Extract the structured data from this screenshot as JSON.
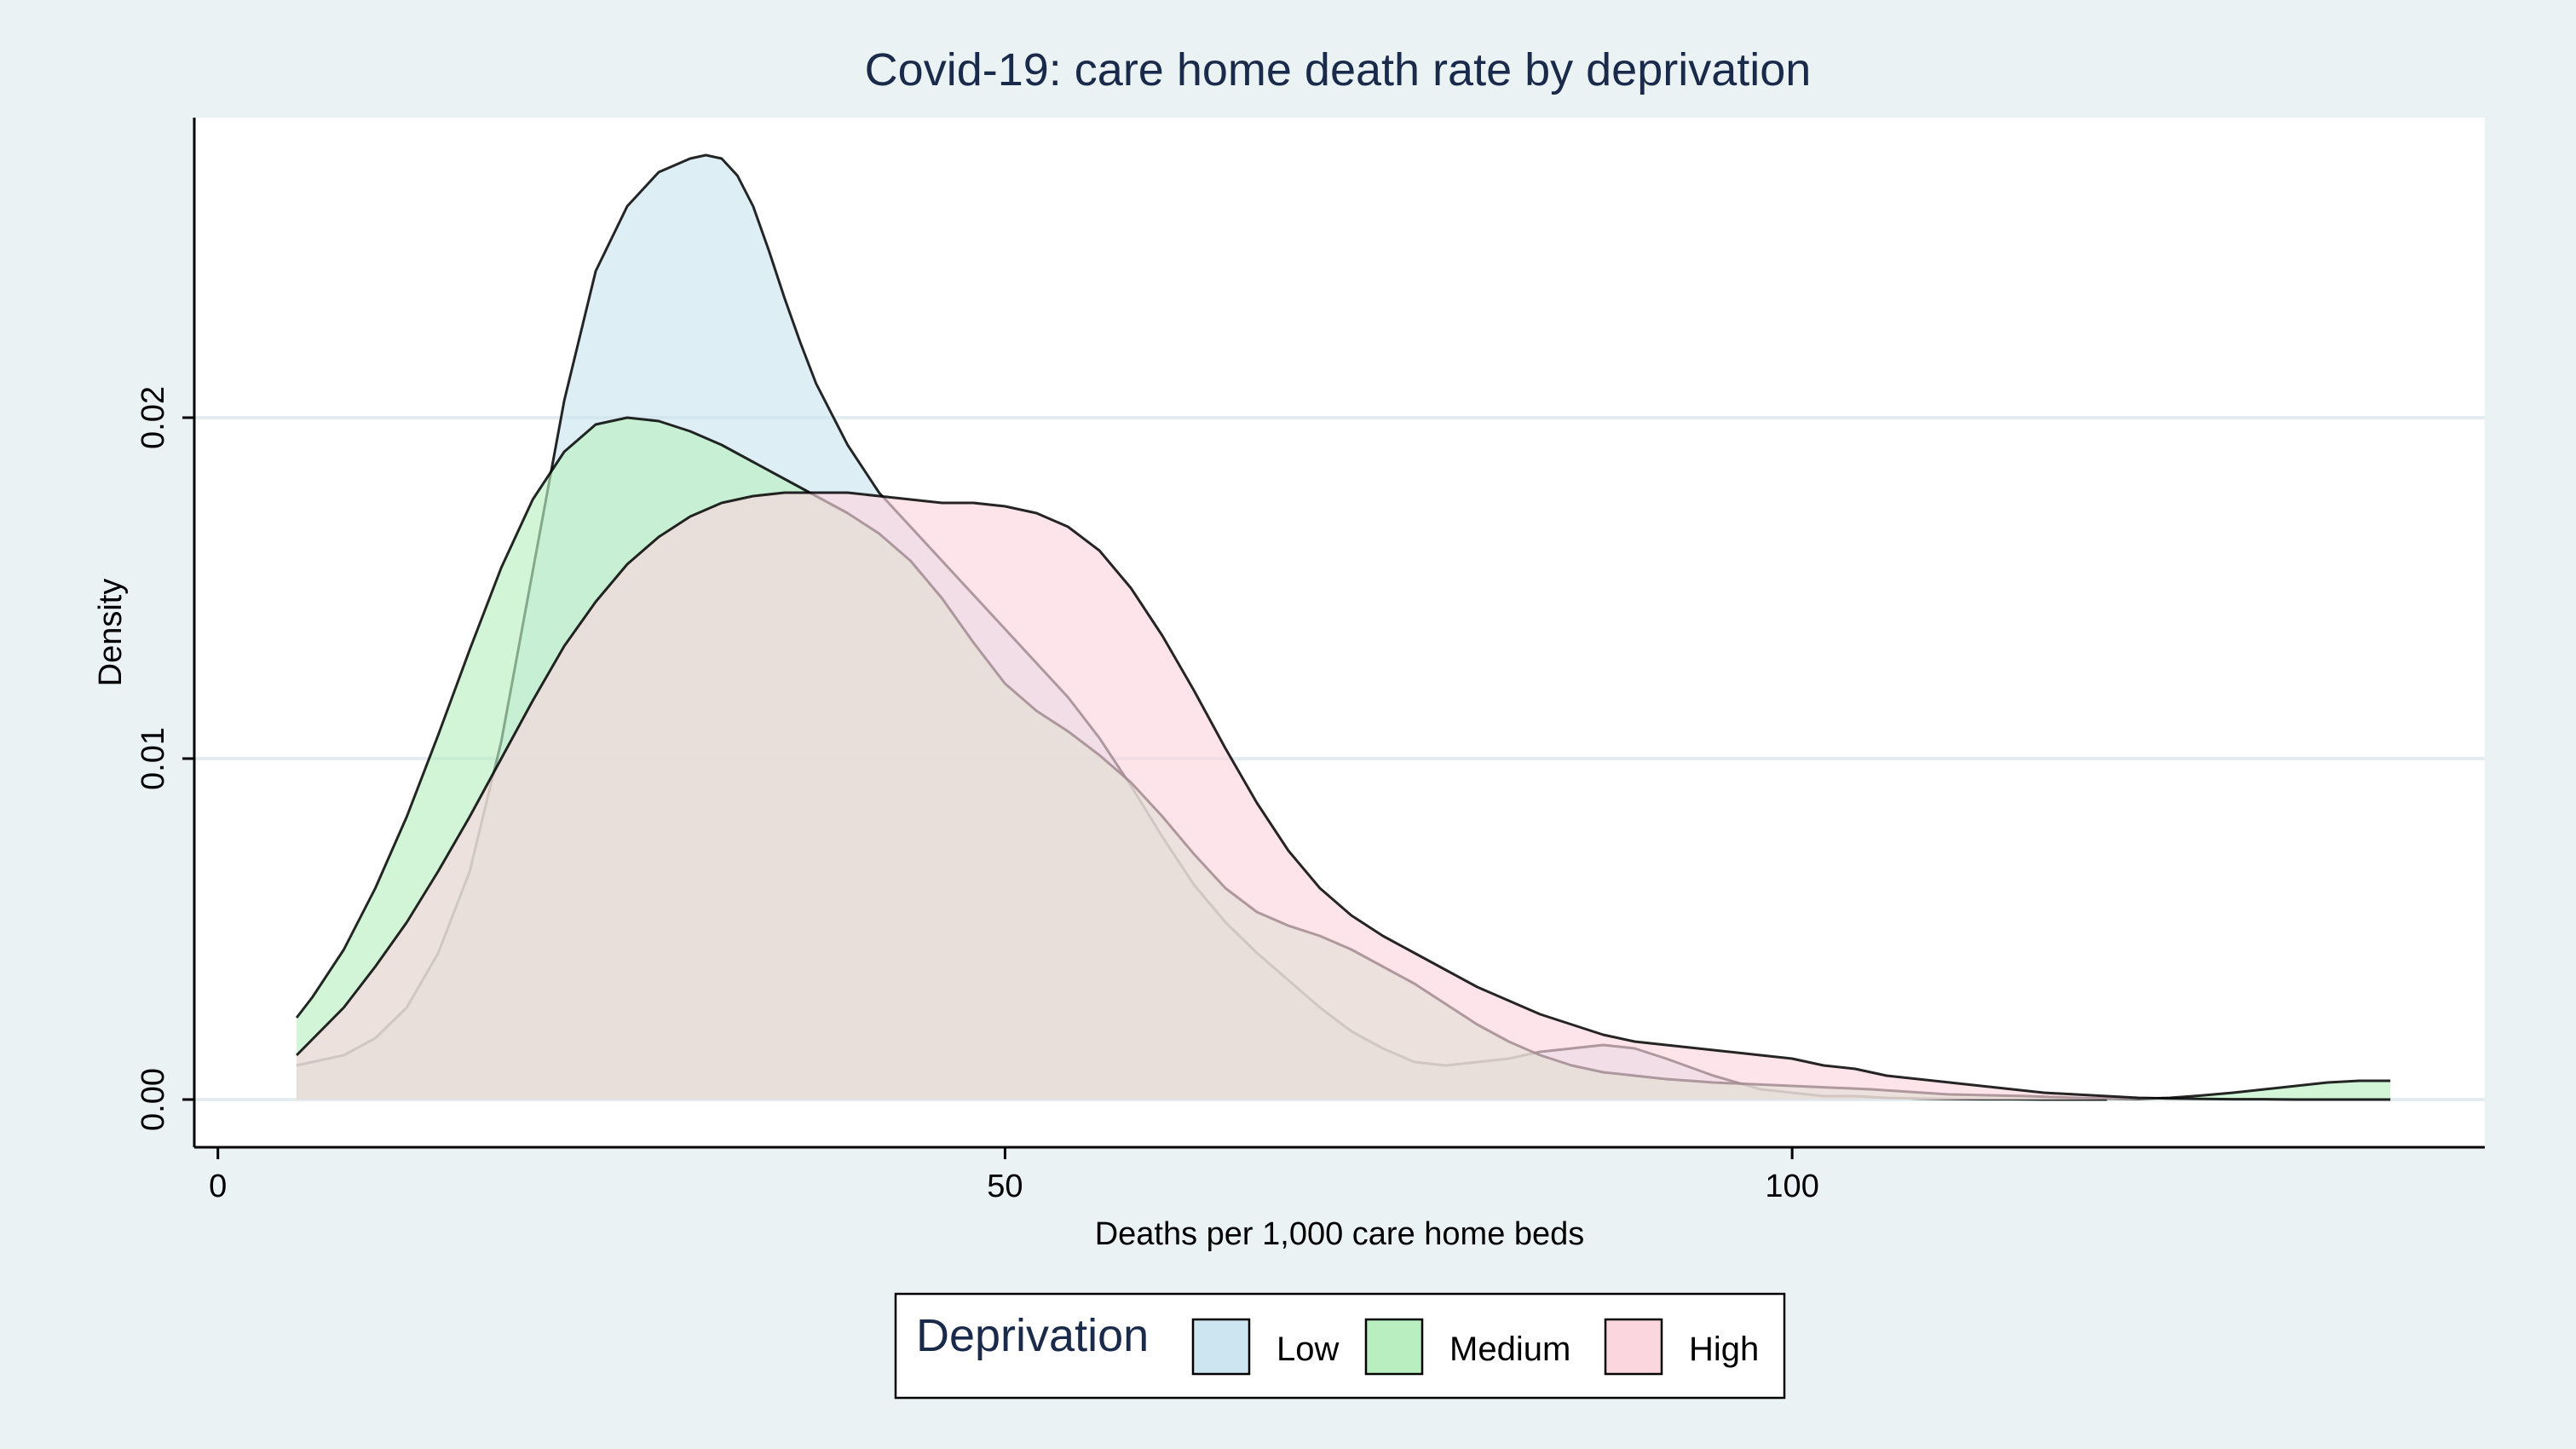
{
  "chart_data": {
    "type": "area",
    "title": "Covid-19: care home death rate by deprivation",
    "xlabel": "Deaths per 1,000 care home beds",
    "ylabel": "Density",
    "xlim": [
      -1.5,
      144
    ],
    "ylim": [
      -0.0014,
      0.0288
    ],
    "x_ticks": [
      0,
      50,
      100
    ],
    "x_tick_labels": [
      "0",
      "50",
      "100"
    ],
    "y_ticks": [
      0,
      0.01,
      0.02
    ],
    "y_tick_labels": [
      "0.00",
      "0.01",
      "0.02"
    ],
    "grid": true,
    "legend_title": "Deprivation",
    "legend_position": "bottom",
    "series": [
      {
        "name": "Low",
        "color": "#cce5f0",
        "x": [
          5,
          8,
          10,
          12,
          14,
          16,
          18,
          20,
          22,
          24,
          26,
          28,
          30,
          31,
          32,
          33,
          34,
          35,
          36,
          37,
          38,
          40,
          42,
          44,
          46,
          48,
          50,
          52,
          54,
          56,
          58,
          60,
          62,
          64,
          66,
          68,
          70,
          72,
          74,
          76,
          78,
          80,
          82,
          84,
          86,
          88,
          90,
          92,
          95,
          98,
          100,
          102,
          104,
          106,
          108,
          110,
          112,
          114,
          116,
          118,
          120
        ],
        "y": [
          0.001,
          0.0013,
          0.0018,
          0.0027,
          0.0043,
          0.0067,
          0.0105,
          0.0155,
          0.0205,
          0.0243,
          0.0262,
          0.0272,
          0.0276,
          0.0277,
          0.0276,
          0.0271,
          0.0262,
          0.0249,
          0.0235,
          0.0222,
          0.021,
          0.0192,
          0.0178,
          0.0168,
          0.0158,
          0.0148,
          0.0138,
          0.0128,
          0.0118,
          0.0106,
          0.0092,
          0.0077,
          0.0063,
          0.0052,
          0.0043,
          0.0035,
          0.0027,
          0.002,
          0.0015,
          0.0011,
          0.001,
          0.0011,
          0.0012,
          0.0014,
          0.0015,
          0.0016,
          0.0015,
          0.0012,
          0.0007,
          0.0003,
          0.0002,
          0.0001,
          0.0001,
          5e-05,
          3e-05,
          2e-05,
          1e-05,
          1e-05,
          0.0,
          0.0,
          0.0
        ]
      },
      {
        "name": "Medium",
        "color": "#b9efc0",
        "x": [
          5,
          6,
          8,
          10,
          12,
          14,
          16,
          18,
          20,
          22,
          24,
          26,
          28,
          30,
          32,
          34,
          36,
          38,
          40,
          42,
          44,
          46,
          48,
          50,
          52,
          54,
          56,
          58,
          60,
          62,
          64,
          66,
          68,
          70,
          72,
          74,
          76,
          78,
          80,
          82,
          84,
          86,
          88,
          90,
          92,
          95,
          100,
          105,
          110,
          115,
          118,
          120,
          122,
          124,
          126,
          128,
          130,
          132,
          134,
          136,
          138
        ],
        "y": [
          0.0024,
          0.003,
          0.0044,
          0.0062,
          0.0083,
          0.0107,
          0.0132,
          0.0156,
          0.0176,
          0.019,
          0.0198,
          0.02,
          0.0199,
          0.0196,
          0.0192,
          0.0187,
          0.0182,
          0.0177,
          0.0172,
          0.0166,
          0.0158,
          0.0147,
          0.0134,
          0.0122,
          0.0114,
          0.0108,
          0.0101,
          0.0093,
          0.0083,
          0.0072,
          0.0062,
          0.0055,
          0.0051,
          0.0048,
          0.0044,
          0.0039,
          0.0034,
          0.0028,
          0.0022,
          0.0017,
          0.0013,
          0.001,
          0.0008,
          0.0007,
          0.0006,
          0.0005,
          0.0004,
          0.0003,
          0.00015,
          0.0001,
          5e-05,
          3e-05,
          2e-05,
          5e-05,
          0.00012,
          0.0002,
          0.0003,
          0.0004,
          0.0005,
          0.00055,
          0.00055
        ]
      },
      {
        "name": "High",
        "color": "#fbd6de",
        "x": [
          5,
          8,
          10,
          12,
          14,
          16,
          18,
          20,
          22,
          24,
          26,
          28,
          30,
          32,
          34,
          36,
          38,
          40,
          42,
          44,
          46,
          48,
          50,
          52,
          54,
          56,
          58,
          60,
          62,
          64,
          66,
          68,
          70,
          72,
          74,
          76,
          78,
          80,
          82,
          84,
          86,
          88,
          90,
          92,
          94,
          96,
          98,
          100,
          102,
          104,
          106,
          108,
          110,
          112,
          114,
          116,
          118,
          120,
          122,
          124,
          126,
          128,
          130,
          132,
          134,
          136,
          138
        ],
        "y": [
          0.0013,
          0.0027,
          0.0039,
          0.0052,
          0.0067,
          0.0083,
          0.01,
          0.0117,
          0.0133,
          0.0146,
          0.0157,
          0.0165,
          0.0171,
          0.0175,
          0.0177,
          0.0178,
          0.0178,
          0.0178,
          0.0177,
          0.0176,
          0.0175,
          0.0175,
          0.0174,
          0.0172,
          0.0168,
          0.0161,
          0.015,
          0.0136,
          0.012,
          0.0103,
          0.0087,
          0.0073,
          0.0062,
          0.0054,
          0.0048,
          0.0043,
          0.0038,
          0.0033,
          0.0029,
          0.0025,
          0.0022,
          0.0019,
          0.0017,
          0.0016,
          0.0015,
          0.0014,
          0.0013,
          0.0012,
          0.001,
          0.0009,
          0.0007,
          0.0006,
          0.0005,
          0.0004,
          0.0003,
          0.0002,
          0.00015,
          0.0001,
          5e-05,
          3e-05,
          2e-05,
          1e-05,
          1e-05,
          0.0,
          0.0,
          0.0,
          0.0
        ]
      }
    ]
  }
}
